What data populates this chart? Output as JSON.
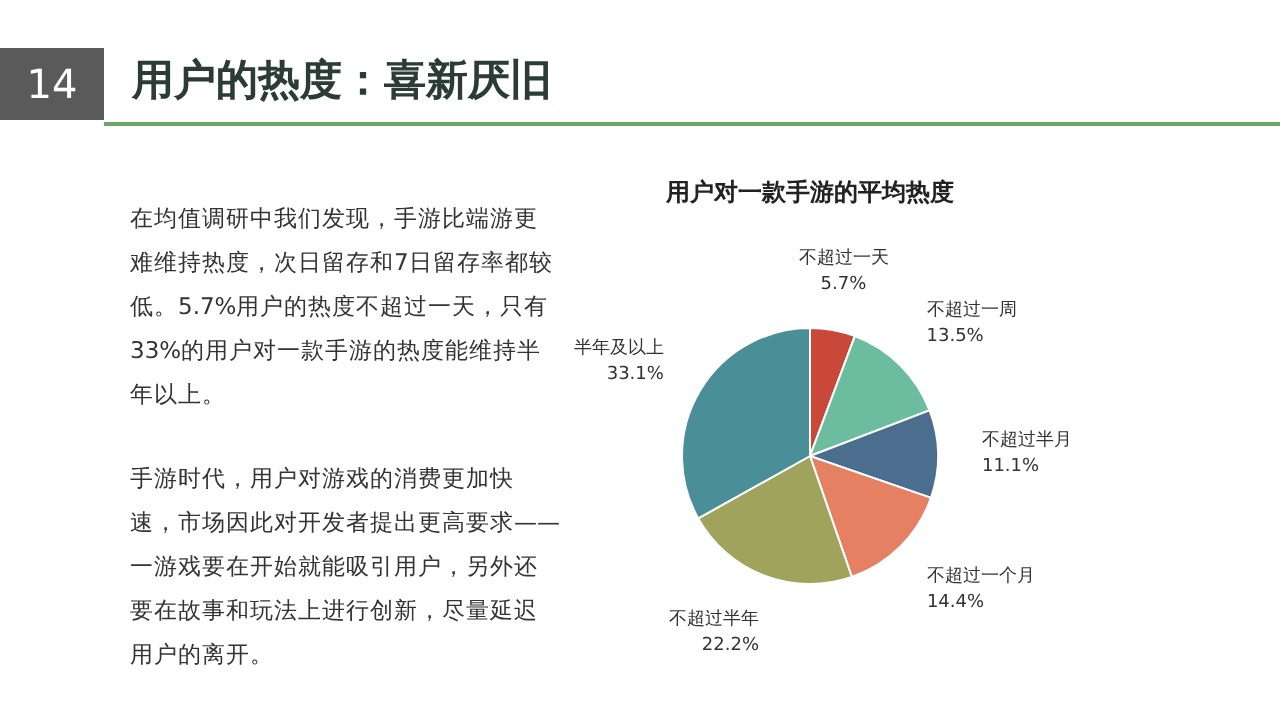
{
  "chart_data": {
    "type": "pie",
    "title": "用户的热度：喜新厌旧",
    "subtitle": "用户对一款手游的平均热度",
    "categories": [
      "不超过一天",
      "不超过一周",
      "不超过半月",
      "不超过一个月",
      "不超过半年",
      "半年及以上"
    ],
    "values": [
      5.7,
      13.5,
      11.1,
      14.4,
      22.2,
      33.1
    ],
    "value_labels": [
      "5.7%",
      "13.5%",
      "11.1%",
      "14.4%",
      "22.2%",
      "33.1%"
    ],
    "colors": [
      "#c9483a",
      "#6cbca0",
      "#4b6e8e",
      "#e58062",
      "#9fa35c",
      "#4a8e98"
    ],
    "annotations": [
      "14",
      "在均值调研中我们发现，手游比端游更难维持热度，次日留存和7日留存率都较低。5.7%用户的热度不超过一天，只有33%的用户对一款手游的热度能维持半年以上。",
      "手游时代，用户对游戏的消费更加快速，市场因此对开发者提出更高要求——一游戏要在开始就能吸引用户，另外还要在故事和玩法上进行创新，尽量延迟用户的离开。"
    ]
  }
}
